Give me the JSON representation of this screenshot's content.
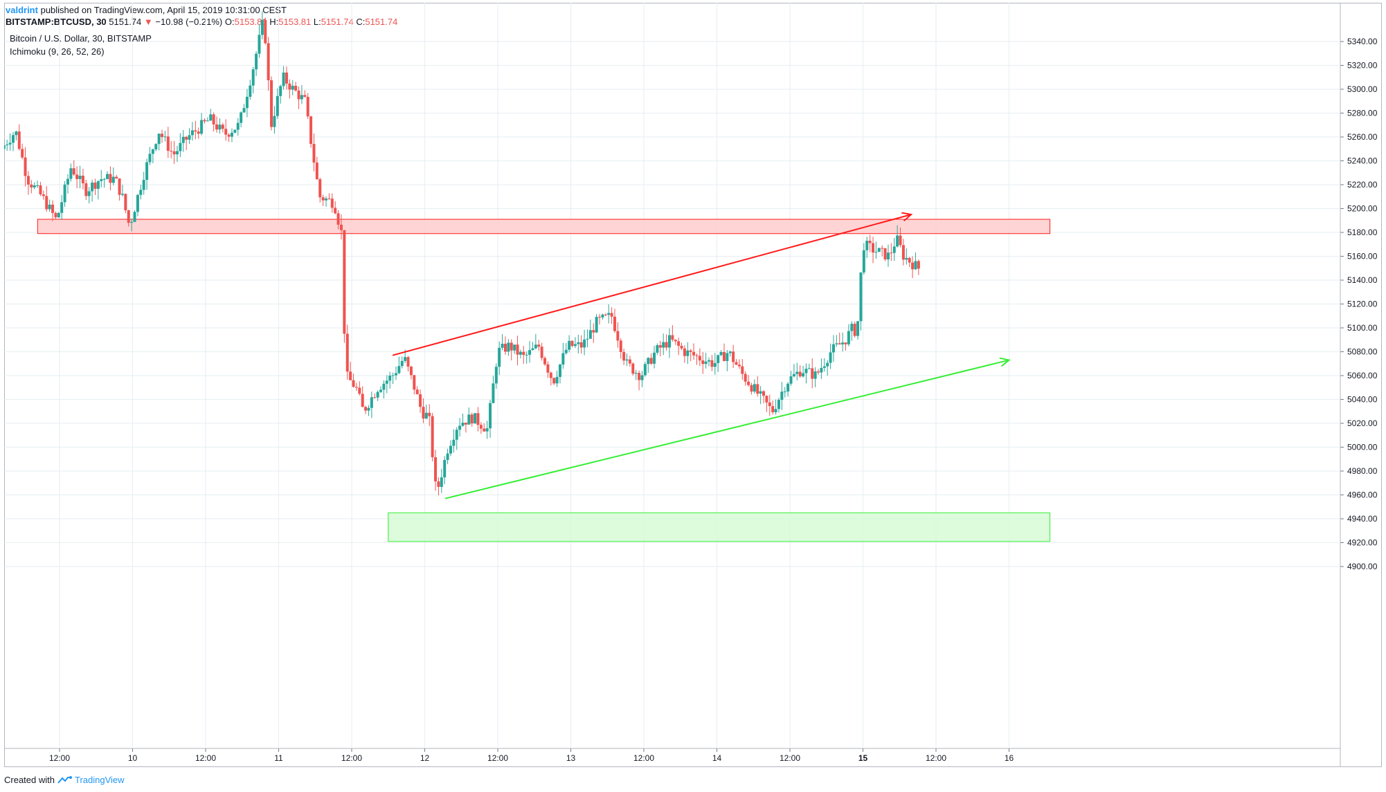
{
  "header": {
    "author": "valdrint",
    "published": "published on TradingView.com, April 15, 2019 10:31:00 CEST",
    "symbol": "BITSTAMP:BTCUSD, 30",
    "last_price": "5151.74",
    "change_arrow": "▼",
    "change": "−10.98 (−0.21%)",
    "ohlc": {
      "o_label": "O:",
      "o": "5153.81",
      "h_label": "H:",
      "h": "5153.81",
      "l_label": "L:",
      "l": "5151.74",
      "c_label": "C:",
      "c": "5151.74"
    }
  },
  "legend": {
    "series_title": "Bitcoin / U.S. Dollar, 30, BITSTAMP",
    "indicator": "Ichimoku (9, 26, 52, 26)"
  },
  "footer": {
    "created_with": "Created with",
    "brand": "TradingView"
  },
  "colors": {
    "up": "#26a69a",
    "down": "#ef5350",
    "resistance_line": "#ff1a1a",
    "support_line": "#33ee33",
    "resistance_zone": "#ffcccc",
    "support_zone": "#d6fcd6",
    "grid": "#e6eef0"
  },
  "chart_data": {
    "type": "candlestick",
    "interval": "30",
    "ylim": [
      4880,
      5350
    ],
    "y_ticks": [
      4900,
      4920,
      4940,
      4960,
      4980,
      5000,
      5020,
      5040,
      5060,
      5080,
      5100,
      5120,
      5140,
      5160,
      5180,
      5200,
      5220,
      5240,
      5260,
      5280,
      5300,
      5320,
      5340
    ],
    "x_ticks": [
      {
        "t": 1.0,
        "label": "12:00"
      },
      {
        "t": 1.5,
        "label": "10"
      },
      {
        "t": 2.0,
        "label": "12:00"
      },
      {
        "t": 2.5,
        "label": "11"
      },
      {
        "t": 3.0,
        "label": "12:00"
      },
      {
        "t": 3.5,
        "label": "12"
      },
      {
        "t": 4.0,
        "label": "12:00"
      },
      {
        "t": 4.5,
        "label": "13"
      },
      {
        "t": 5.0,
        "label": "12:00"
      },
      {
        "t": 5.5,
        "label": "14"
      },
      {
        "t": 6.0,
        "label": "12:00"
      },
      {
        "t": 6.5,
        "label": "15"
      },
      {
        "t": 7.0,
        "label": "12:00"
      },
      {
        "t": 7.5,
        "label": "16"
      }
    ],
    "x_range": [
      0.62,
      7.8
    ],
    "price_path": [
      [
        0.62,
        5250
      ],
      [
        0.72,
        5265
      ],
      [
        0.8,
        5225
      ],
      [
        0.9,
        5210
      ],
      [
        1.0,
        5190
      ],
      [
        1.1,
        5235
      ],
      [
        1.2,
        5215
      ],
      [
        1.3,
        5225
      ],
      [
        1.4,
        5225
      ],
      [
        1.45,
        5210
      ],
      [
        1.5,
        5185
      ],
      [
        1.6,
        5230
      ],
      [
        1.7,
        5265
      ],
      [
        1.8,
        5245
      ],
      [
        1.9,
        5260
      ],
      [
        2.05,
        5275
      ],
      [
        2.15,
        5262
      ],
      [
        2.25,
        5270
      ],
      [
        2.35,
        5320
      ],
      [
        2.42,
        5360
      ],
      [
        2.47,
        5270
      ],
      [
        2.55,
        5310
      ],
      [
        2.62,
        5300
      ],
      [
        2.7,
        5290
      ],
      [
        2.8,
        5210
      ],
      [
        2.9,
        5205
      ],
      [
        2.95,
        5180
      ],
      [
        2.98,
        5060
      ],
      [
        3.05,
        5050
      ],
      [
        3.1,
        5030
      ],
      [
        3.2,
        5050
      ],
      [
        3.3,
        5060
      ],
      [
        3.38,
        5075
      ],
      [
        3.45,
        5050
      ],
      [
        3.5,
        5030
      ],
      [
        3.55,
        5025
      ],
      [
        3.6,
        4960
      ],
      [
        3.68,
        5000
      ],
      [
        3.75,
        5020
      ],
      [
        3.85,
        5025
      ],
      [
        3.95,
        5015
      ],
      [
        4.02,
        5080
      ],
      [
        4.1,
        5085
      ],
      [
        4.2,
        5075
      ],
      [
        4.3,
        5085
      ],
      [
        4.4,
        5055
      ],
      [
        4.5,
        5085
      ],
      [
        4.6,
        5085
      ],
      [
        4.7,
        5105
      ],
      [
        4.8,
        5110
      ],
      [
        4.9,
        5070
      ],
      [
        5.0,
        5060
      ],
      [
        5.1,
        5080
      ],
      [
        5.2,
        5090
      ],
      [
        5.3,
        5080
      ],
      [
        5.4,
        5075
      ],
      [
        5.5,
        5070
      ],
      [
        5.6,
        5080
      ],
      [
        5.7,
        5060
      ],
      [
        5.8,
        5045
      ],
      [
        5.9,
        5030
      ],
      [
        6.0,
        5055
      ],
      [
        6.1,
        5065
      ],
      [
        6.2,
        5060
      ],
      [
        6.3,
        5080
      ],
      [
        6.4,
        5090
      ],
      [
        6.45,
        5100
      ],
      [
        6.48,
        5095
      ],
      [
        6.52,
        5170
      ],
      [
        6.6,
        5165
      ],
      [
        6.7,
        5160
      ],
      [
        6.75,
        5175
      ],
      [
        6.8,
        5160
      ],
      [
        6.9,
        5150
      ]
    ],
    "annotations": [
      {
        "kind": "zone",
        "name": "resistance-zone",
        "t1": 0.85,
        "t2": 7.78,
        "p1": 5179,
        "p2": 5191,
        "color": "#ff1a1a",
        "fill": "#ffcccc"
      },
      {
        "kind": "zone",
        "name": "support-zone",
        "t1": 3.25,
        "t2": 7.78,
        "p1": 4921,
        "p2": 4945,
        "color": "#33ee33",
        "fill": "#d6fcd6"
      },
      {
        "kind": "arrow",
        "name": "resistance-trendline",
        "t1": 3.28,
        "p1": 5077,
        "t2": 6.83,
        "p2": 5195,
        "color": "#ff1a1a"
      },
      {
        "kind": "arrow",
        "name": "support-trendline",
        "t1": 3.64,
        "p1": 4957,
        "t2": 7.5,
        "p2": 5073,
        "color": "#33ee33"
      }
    ]
  }
}
